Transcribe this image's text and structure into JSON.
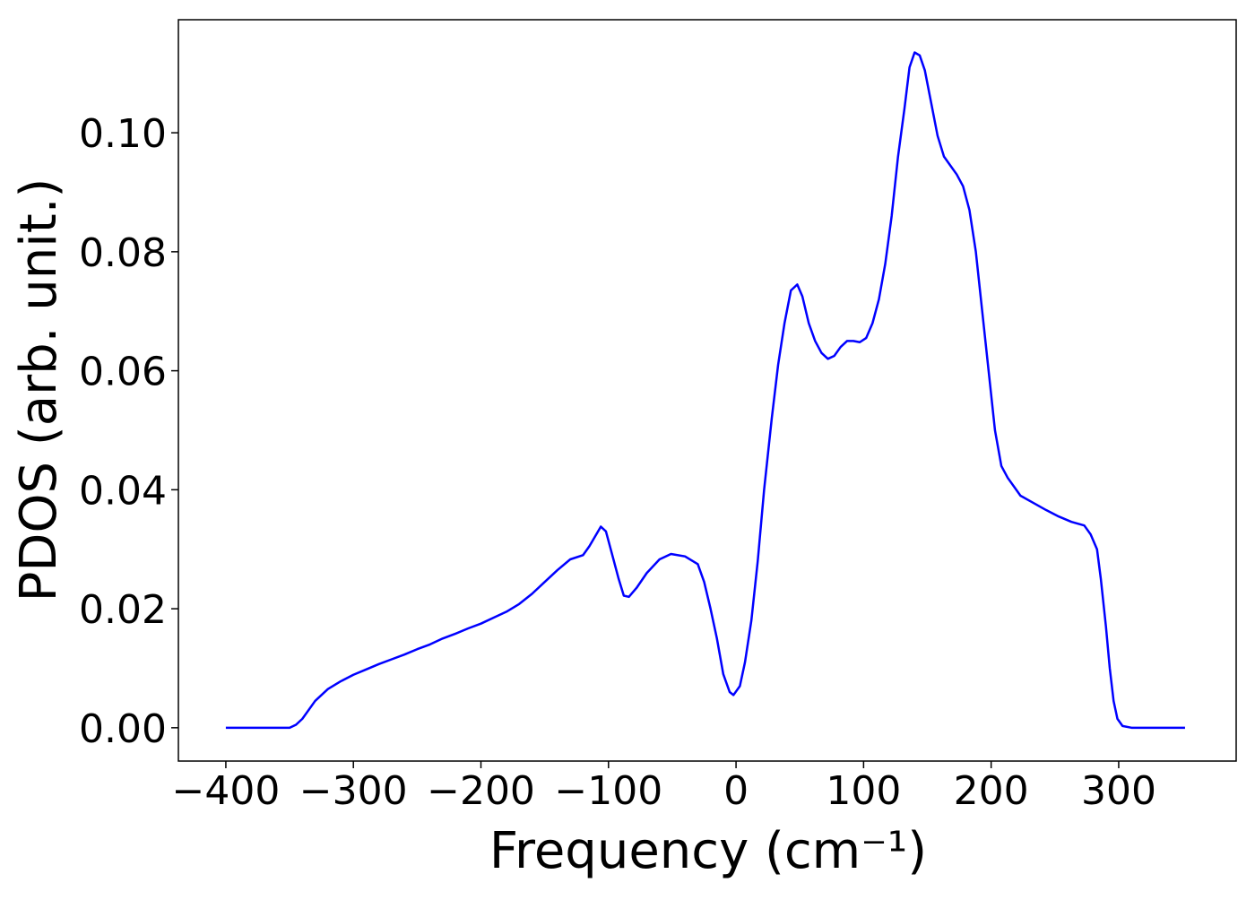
{
  "chart_data": {
    "type": "line",
    "xlabel": "Frequency (cm⁻¹)",
    "ylabel": "PDOS (arb. unit.)",
    "xlim": [
      -437.2,
      392.1
    ],
    "ylim": [
      -0.0056,
      0.119
    ],
    "xticks": [
      {
        "value": -400,
        "label": "−400"
      },
      {
        "value": -300,
        "label": "−300"
      },
      {
        "value": -200,
        "label": "−200"
      },
      {
        "value": -100,
        "label": "−100"
      },
      0,
      100,
      200,
      300
    ],
    "yticks": [
      {
        "value": 0,
        "label": "0.00"
      },
      {
        "value": 0.02,
        "label": "0.02"
      },
      {
        "value": 0.04,
        "label": "0.04"
      },
      {
        "value": 0.06,
        "label": "0.06"
      },
      {
        "value": 0.08,
        "label": "0.08"
      },
      {
        "value": 0.1,
        "label": "0.10"
      }
    ],
    "grid": false,
    "color": "#0000ff",
    "x": [
      -400,
      -350,
      -345,
      -340,
      -330,
      -320,
      -310,
      -300,
      -290,
      -280,
      -270,
      -260,
      -250,
      -240,
      -230,
      -220,
      -210,
      -200,
      -190,
      -180,
      -170,
      -160,
      -150,
      -140,
      -130,
      -120,
      -115,
      -106,
      -102,
      -97,
      -92,
      -88,
      -84,
      -78,
      -70,
      -60,
      -51,
      -40,
      -30,
      -25,
      -20,
      -15,
      -10,
      -5,
      -2,
      3,
      7,
      12,
      17,
      22,
      28,
      33,
      38,
      43,
      48,
      52,
      57,
      62,
      67,
      72,
      77,
      82,
      87,
      92,
      97,
      102,
      107,
      112,
      117,
      122,
      127,
      132,
      136,
      140,
      144,
      148,
      153,
      158,
      163,
      168,
      173,
      178,
      183,
      188,
      193,
      198,
      203,
      208,
      213,
      218,
      223,
      233,
      243,
      253,
      263,
      273,
      278,
      283,
      286,
      290,
      293,
      296,
      299,
      303,
      310,
      352
    ],
    "values": [
      0,
      0,
      0.0005,
      0.0015,
      0.0045,
      0.0065,
      0.0078,
      0.0089,
      0.0098,
      0.0107,
      0.0115,
      0.0123,
      0.0132,
      0.014,
      0.015,
      0.0158,
      0.0167,
      0.0175,
      0.0185,
      0.0195,
      0.0208,
      0.0225,
      0.0245,
      0.0265,
      0.0283,
      0.029,
      0.0305,
      0.0338,
      0.033,
      0.029,
      0.025,
      0.0222,
      0.022,
      0.0235,
      0.026,
      0.0283,
      0.0292,
      0.0288,
      0.0275,
      0.0245,
      0.02,
      0.015,
      0.009,
      0.006,
      0.0055,
      0.007,
      0.011,
      0.018,
      0.028,
      0.04,
      0.052,
      0.061,
      0.068,
      0.0735,
      0.0745,
      0.0725,
      0.068,
      0.065,
      0.063,
      0.062,
      0.0625,
      0.064,
      0.065,
      0.065,
      0.0648,
      0.0655,
      0.068,
      0.072,
      0.078,
      0.086,
      0.096,
      0.104,
      0.111,
      0.1135,
      0.113,
      0.1105,
      0.105,
      0.0995,
      0.096,
      0.0945,
      0.093,
      0.091,
      0.087,
      0.08,
      0.07,
      0.06,
      0.05,
      0.044,
      0.042,
      0.0405,
      0.039,
      0.0378,
      0.0366,
      0.0355,
      0.0346,
      0.034,
      0.0325,
      0.03,
      0.025,
      0.017,
      0.01,
      0.0045,
      0.0015,
      0.0003,
      0,
      0
    ]
  }
}
